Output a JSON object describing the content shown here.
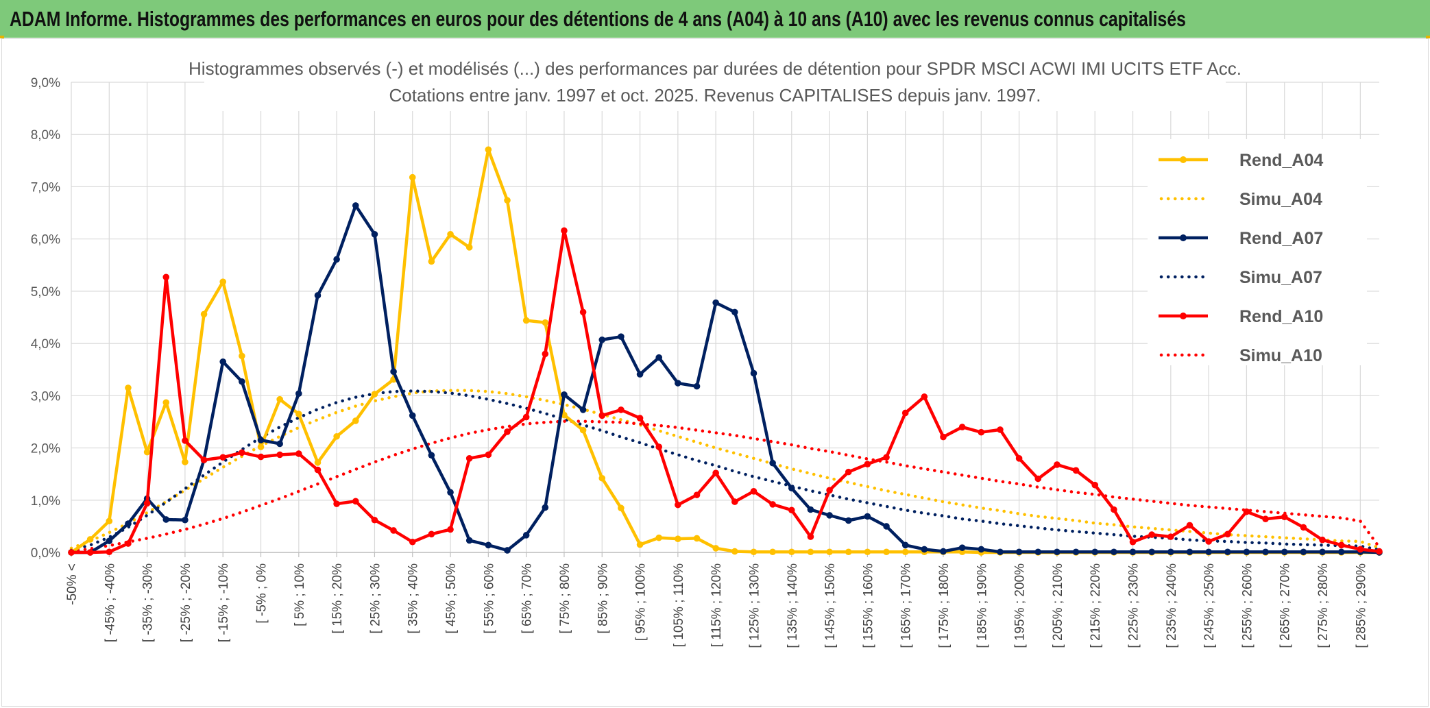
{
  "banner": {
    "title": "ADAM Informe. Histogrammes des performances en euros pour des détentions de 4 ans (A04) à 10 ans (A10) avec les revenus connus capitalisés"
  },
  "colors": {
    "banner_bg": "#7ec97a",
    "A04": "#ffc000",
    "A07": "#002060",
    "A10": "#ff0000",
    "grid": "#d9d9d9"
  },
  "chart_data": {
    "type": "line",
    "title": [
      "Histogrammes observés (-) et modélisés (...) des performances par durées de détention pour SPDR MSCI ACWI IMI UCITS ETF Acc.",
      "Cotations entre janv. 1997 et oct. 2025. Revenus CAPITALISES depuis janv. 1997."
    ],
    "ylim": [
      0,
      9
    ],
    "y_ticks": [
      "0,0%",
      "1,0%",
      "2,0%",
      "3,0%",
      "4,0%",
      "5,0%",
      "6,0%",
      "7,0%",
      "8,0%",
      "9,0%"
    ],
    "x_labels": [
      "-50% <",
      "[ -45% ; -40%",
      "[ -35% ; -30%",
      "[ -25% ; -20%",
      "[ -15% ; -10%",
      "[ -5% ; 0%",
      "[ 5% ; 10%",
      "[ 15% ; 20%",
      "[ 25% ; 30%",
      "[ 35% ; 40%",
      "[ 45% ; 50%",
      "[ 55% ; 60%",
      "[ 65% ; 70%",
      "[ 75% ; 80%",
      "[ 85% ; 90%",
      "[ 95% ; 100%",
      "[ 105% ; 110%",
      "[ 115% ; 120%",
      "[ 125% ; 130%",
      "[ 135% ; 140%",
      "[ 145% ; 150%",
      "[ 155% ; 160%",
      "[ 165% ; 170%",
      "[ 175% ; 180%",
      "[ 185% ; 190%",
      "[ 195% ; 200%",
      "[ 205% ; 210%",
      "[ 215% ; 220%",
      "[ 225% ; 230%",
      "[ 235% ; 240%",
      "[ 245% ; 250%",
      "[ 255% ; 260%",
      "[ 265% ; 270%",
      "[ 275% ; 280%",
      "[ 285% ; 290%"
    ],
    "grid": true,
    "legend_position": "right",
    "series": [
      {
        "name": "Rend_A04",
        "style": "solid-markers",
        "color": "#ffc000",
        "values": [
          0.0,
          0.25,
          0.6,
          3.15,
          1.92,
          2.87,
          1.73,
          4.56,
          5.18,
          3.76,
          2.02,
          2.93,
          2.65,
          1.72,
          2.22,
          2.52,
          3.03,
          3.31,
          7.18,
          5.57,
          6.09,
          5.84,
          7.71,
          6.74,
          4.44,
          4.4,
          2.63,
          2.34,
          1.42,
          0.85,
          0.15,
          0.28,
          0.26,
          0.27,
          0.08,
          0.02,
          0.01,
          0.01,
          0.01,
          0.01,
          0.01,
          0.01,
          0.01,
          0.01,
          0.01,
          0.01,
          0.01,
          0.01,
          0.0,
          0.0,
          0.0,
          0.0,
          0.0,
          0.0,
          0.0,
          0.0,
          0.0,
          0.0,
          0.0,
          0.0,
          0.0,
          0.0,
          0.0,
          0.0,
          0.0,
          0.0,
          0.0,
          0.0,
          0.0,
          0.0
        ]
      },
      {
        "name": "Simu_A04",
        "style": "dotted",
        "color": "#ffc000",
        "values": [
          0.08,
          0.22,
          0.38,
          0.56,
          0.76,
          0.97,
          1.19,
          1.41,
          1.63,
          1.84,
          2.04,
          2.22,
          2.39,
          2.54,
          2.68,
          2.8,
          2.9,
          2.98,
          3.05,
          3.09,
          3.1,
          3.1,
          3.08,
          3.04,
          2.98,
          2.91,
          2.83,
          2.74,
          2.64,
          2.54,
          2.44,
          2.33,
          2.22,
          2.11,
          2.0,
          1.9,
          1.8,
          1.7,
          1.6,
          1.51,
          1.42,
          1.34,
          1.26,
          1.18,
          1.11,
          1.04,
          0.97,
          0.91,
          0.85,
          0.8,
          0.74,
          0.69,
          0.65,
          0.61,
          0.56,
          0.53,
          0.49,
          0.46,
          0.43,
          0.4,
          0.37,
          0.34,
          0.32,
          0.3,
          0.28,
          0.26,
          0.24,
          0.22,
          0.21,
          0.09
        ]
      },
      {
        "name": "Rend_A07",
        "style": "solid-markers",
        "color": "#002060",
        "values": [
          0.0,
          0.0,
          0.22,
          0.55,
          1.03,
          0.63,
          0.62,
          1.77,
          3.65,
          3.27,
          2.15,
          2.08,
          3.04,
          4.92,
          5.61,
          6.64,
          6.09,
          3.46,
          2.62,
          1.86,
          1.15,
          0.23,
          0.14,
          0.04,
          0.33,
          0.86,
          3.02,
          2.73,
          4.07,
          4.13,
          3.41,
          3.73,
          3.24,
          3.18,
          4.78,
          4.6,
          3.43,
          1.71,
          1.23,
          0.82,
          0.71,
          0.61,
          0.69,
          0.5,
          0.14,
          0.06,
          0.02,
          0.09,
          0.06,
          0.01,
          0.01,
          0.01,
          0.01,
          0.01,
          0.01,
          0.01,
          0.01,
          0.01,
          0.01,
          0.01,
          0.01,
          0.01,
          0.01,
          0.01,
          0.01,
          0.01,
          0.01,
          0.01,
          0.01,
          0.0
        ]
      },
      {
        "name": "Simu_A07",
        "style": "dotted",
        "color": "#002060",
        "values": [
          0.04,
          0.14,
          0.29,
          0.48,
          0.71,
          0.96,
          1.22,
          1.48,
          1.73,
          1.97,
          2.2,
          2.4,
          2.58,
          2.74,
          2.87,
          2.97,
          3.04,
          3.08,
          3.09,
          3.08,
          3.05,
          3.0,
          2.93,
          2.85,
          2.76,
          2.66,
          2.55,
          2.44,
          2.33,
          2.21,
          2.1,
          1.98,
          1.87,
          1.76,
          1.66,
          1.55,
          1.45,
          1.36,
          1.27,
          1.18,
          1.1,
          1.02,
          0.95,
          0.88,
          0.81,
          0.75,
          0.7,
          0.64,
          0.6,
          0.55,
          0.51,
          0.47,
          0.43,
          0.4,
          0.37,
          0.34,
          0.31,
          0.29,
          0.27,
          0.24,
          0.22,
          0.21,
          0.19,
          0.18,
          0.16,
          0.15,
          0.14,
          0.13,
          0.12,
          0.05
        ]
      },
      {
        "name": "Rend_A10",
        "style": "solid-markers",
        "color": "#ff0000",
        "values": [
          0.0,
          0.0,
          0.01,
          0.17,
          0.94,
          5.27,
          2.14,
          1.77,
          1.82,
          1.91,
          1.83,
          1.87,
          1.89,
          1.58,
          0.93,
          0.98,
          0.62,
          0.42,
          0.2,
          0.35,
          0.44,
          1.8,
          1.87,
          2.31,
          2.59,
          3.8,
          6.16,
          4.6,
          2.62,
          2.73,
          2.57,
          2.02,
          0.91,
          1.1,
          1.52,
          0.97,
          1.17,
          0.92,
          0.81,
          0.3,
          1.19,
          1.54,
          1.69,
          1.82,
          2.67,
          2.98,
          2.21,
          2.4,
          2.3,
          2.35,
          1.8,
          1.41,
          1.68,
          1.57,
          1.29,
          0.82,
          0.2,
          0.34,
          0.3,
          0.52,
          0.21,
          0.35,
          0.78,
          0.64,
          0.68,
          0.48,
          0.24,
          0.14,
          0.06,
          0.02
        ]
      },
      {
        "name": "Simu_A10",
        "style": "dotted",
        "color": "#ff0000",
        "values": [
          0.02,
          0.07,
          0.13,
          0.2,
          0.27,
          0.35,
          0.44,
          0.54,
          0.65,
          0.77,
          0.9,
          1.03,
          1.17,
          1.31,
          1.45,
          1.59,
          1.73,
          1.86,
          1.98,
          2.09,
          2.19,
          2.28,
          2.35,
          2.41,
          2.46,
          2.49,
          2.51,
          2.51,
          2.5,
          2.49,
          2.46,
          2.43,
          2.39,
          2.34,
          2.29,
          2.24,
          2.18,
          2.12,
          2.06,
          1.99,
          1.93,
          1.86,
          1.79,
          1.73,
          1.66,
          1.6,
          1.54,
          1.48,
          1.42,
          1.36,
          1.31,
          1.25,
          1.2,
          1.15,
          1.11,
          1.06,
          1.02,
          0.98,
          0.94,
          0.9,
          0.87,
          0.84,
          0.81,
          0.78,
          0.75,
          0.72,
          0.69,
          0.66,
          0.6,
          0.1
        ]
      }
    ]
  }
}
